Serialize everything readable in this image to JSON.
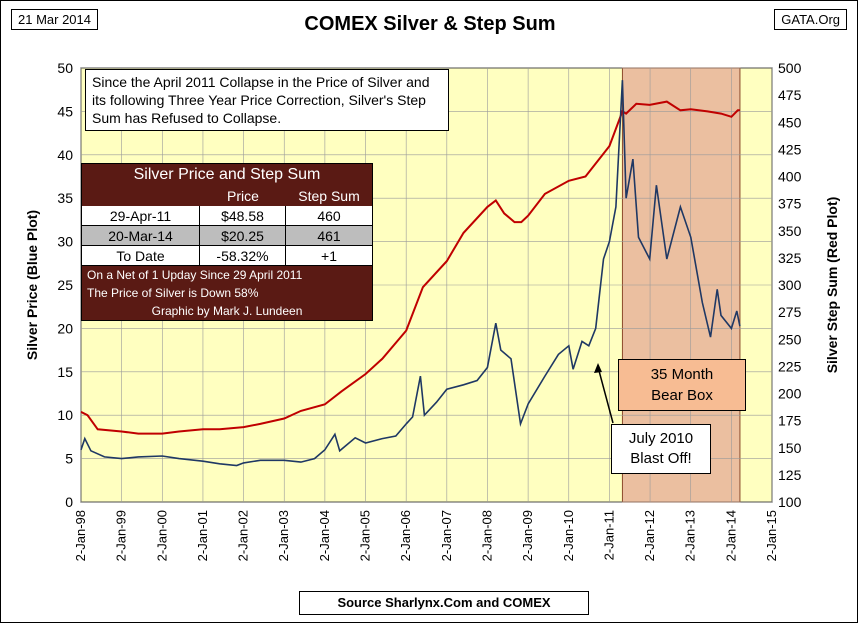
{
  "header": {
    "date": "21 Mar 2014",
    "title": "COMEX Silver & Step Sum",
    "site": "GATA.Org"
  },
  "note": "Since the April 2011 Collapse in the Price of Silver and its following  Three Year Price Correction, Silver's Step Sum has Refused to Collapse.",
  "table": {
    "title": "Silver Price and Step Sum",
    "headers": [
      "",
      "Price",
      "Step Sum"
    ],
    "rows": [
      [
        "29-Apr-11",
        "$48.58",
        "460"
      ],
      [
        "20-Mar-14",
        "$20.25",
        "461"
      ],
      [
        "To Date",
        "-58.32%",
        "+1"
      ]
    ],
    "footnote1": "On a Net of 1 Upday Since 29 April 2011",
    "footnote2": "The Price of Silver is Down 58%",
    "credit": "Graphic by Mark J. Lundeen"
  },
  "annotations": {
    "bear_box_line1": "35 Month",
    "bear_box_line2": "Bear Box",
    "blast_line1": "July 2010",
    "blast_line2": "Blast Off!"
  },
  "source": "Source Sharlynx.Com and COMEX",
  "colors": {
    "plot_bg": "#ffffc0",
    "silver_line": "#1f3864",
    "step_sum_line": "#c00000",
    "bear_box": "#e8b49a",
    "table_dark": "#5a1a14"
  },
  "chart_data": {
    "type": "line",
    "title": "COMEX Silver & Step Sum",
    "xlabel": "",
    "ylabel_left": "Silver Price   (Blue Plot)",
    "ylabel_right": "Silver Step Sum    (Red Plot)",
    "ylim_left": [
      0,
      50
    ],
    "ylim_right": [
      100,
      500
    ],
    "left_ticks": [
      0,
      5,
      10,
      15,
      20,
      25,
      30,
      35,
      40,
      45,
      50
    ],
    "right_ticks": [
      100,
      125,
      150,
      175,
      200,
      225,
      250,
      275,
      300,
      325,
      350,
      375,
      400,
      425,
      450,
      475,
      500
    ],
    "x_tick_labels": [
      "2-Jan-98",
      "2-Jan-99",
      "2-Jan-00",
      "2-Jan-01",
      "2-Jan-02",
      "2-Jan-03",
      "2-Jan-04",
      "2-Jan-05",
      "2-Jan-06",
      "2-Jan-07",
      "2-Jan-08",
      "2-Jan-09",
      "2-Jan-10",
      "2-Jan-11",
      "2-Jan-12",
      "2-Jan-13",
      "2-Jan-14",
      "2-Jan-15"
    ],
    "xlim": [
      "1998-01-02",
      "2015-01-02"
    ],
    "grid": true,
    "bear_box_range": {
      "start": "2011-04-29",
      "end": "2014-03-20"
    },
    "series": [
      {
        "name": "Silver Price",
        "axis": "left",
        "x": [
          "1998-01-02",
          "1998-02-05",
          "1998-04-01",
          "1998-08-01",
          "1999-01-02",
          "1999-06-01",
          "2000-01-02",
          "2000-06-01",
          "2001-01-02",
          "2001-06-01",
          "2001-11-01",
          "2002-01-02",
          "2002-06-01",
          "2003-01-02",
          "2003-06-01",
          "2003-10-01",
          "2004-01-02",
          "2004-04-01",
          "2004-05-15",
          "2004-10-01",
          "2005-01-02",
          "2005-06-01",
          "2005-10-01",
          "2006-01-02",
          "2006-03-01",
          "2006-05-10",
          "2006-06-15",
          "2006-10-01",
          "2007-01-02",
          "2007-06-01",
          "2007-10-01",
          "2008-01-02",
          "2008-03-17",
          "2008-05-01",
          "2008-08-01",
          "2008-10-25",
          "2009-01-02",
          "2009-06-01",
          "2009-10-01",
          "2010-01-02",
          "2010-02-10",
          "2010-05-01",
          "2010-07-01",
          "2010-09-01",
          "2010-11-10",
          "2011-01-02",
          "2011-03-01",
          "2011-04-29",
          "2011-06-01",
          "2011-08-01",
          "2011-09-20",
          "2011-12-30",
          "2012-02-28",
          "2012-06-01",
          "2012-10-01",
          "2013-01-02",
          "2013-04-16",
          "2013-06-28",
          "2013-08-28",
          "2013-10-01",
          "2014-01-02",
          "2014-02-20",
          "2014-03-20"
        ],
        "y": [
          6.0,
          7.3,
          5.9,
          5.2,
          5.0,
          5.2,
          5.3,
          5.0,
          4.7,
          4.4,
          4.2,
          4.5,
          4.8,
          4.8,
          4.6,
          5.0,
          6.0,
          7.8,
          5.9,
          7.4,
          6.8,
          7.3,
          7.6,
          9.0,
          9.8,
          14.5,
          10.0,
          11.5,
          13.0,
          13.5,
          14.0,
          15.5,
          20.6,
          17.5,
          16.5,
          9.0,
          11.3,
          14.5,
          17.0,
          18.0,
          15.3,
          18.5,
          18.0,
          20.0,
          28.0,
          30.0,
          34.0,
          48.6,
          35.0,
          39.5,
          30.5,
          28.0,
          36.5,
          28.0,
          34.0,
          30.5,
          23.0,
          19.0,
          24.5,
          21.5,
          20.0,
          22.0,
          20.25
        ]
      },
      {
        "name": "Silver Step Sum",
        "axis": "right",
        "x": [
          "1998-01-02",
          "1998-03-01",
          "1998-06-01",
          "1999-01-02",
          "1999-06-01",
          "2000-01-02",
          "2000-06-01",
          "2001-01-02",
          "2001-06-01",
          "2002-01-02",
          "2002-06-01",
          "2003-01-02",
          "2003-06-01",
          "2004-01-02",
          "2004-06-01",
          "2005-01-02",
          "2005-06-01",
          "2006-01-02",
          "2006-06-01",
          "2007-01-02",
          "2007-06-01",
          "2008-01-02",
          "2008-03-17",
          "2008-06-01",
          "2008-09-01",
          "2008-11-01",
          "2009-01-02",
          "2009-06-01",
          "2010-01-02",
          "2010-06-01",
          "2011-01-02",
          "2011-04-29",
          "2011-06-01",
          "2011-09-01",
          "2011-12-30",
          "2012-06-01",
          "2012-10-01",
          "2013-01-02",
          "2013-06-01",
          "2013-10-01",
          "2014-01-02",
          "2014-03-01",
          "2014-03-20"
        ],
        "y": [
          183,
          180,
          167,
          165,
          163,
          163,
          165,
          167,
          167,
          169,
          172,
          177,
          184,
          190,
          202,
          218,
          232,
          258,
          298,
          322,
          348,
          372,
          378,
          366,
          358,
          358,
          364,
          384,
          396,
          400,
          428,
          460,
          458,
          467,
          466,
          469,
          461,
          462,
          460,
          458,
          455,
          461,
          461
        ]
      }
    ]
  }
}
